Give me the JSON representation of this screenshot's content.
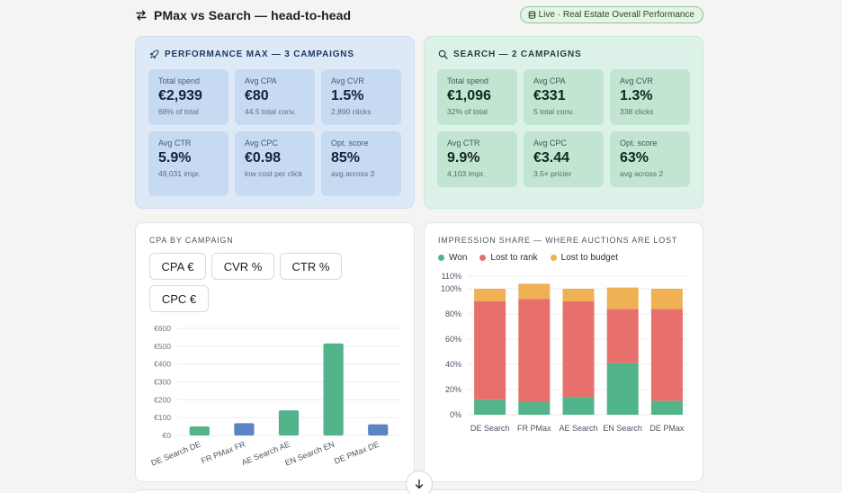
{
  "header": {
    "title": "PMax vs Search — head-to-head",
    "badge": "Live · Real Estate Overall Performance"
  },
  "pmax": {
    "heading": "PERFORMANCE MAX — 3 CAMPAIGNS",
    "tiles": [
      {
        "label": "Total spend",
        "value": "€2,939",
        "sub": "68% of total"
      },
      {
        "label": "Avg CPA",
        "value": "€80",
        "sub": "44.5 total conv."
      },
      {
        "label": "Avg CVR",
        "value": "1.5%",
        "sub": "2,890 clicks"
      },
      {
        "label": "Avg CTR",
        "value": "5.9%",
        "sub": "49,031 impr."
      },
      {
        "label": "Avg CPC",
        "value": "€0.98",
        "sub": "low cost per click"
      },
      {
        "label": "Opt. score",
        "value": "85%",
        "sub": "avg across 3"
      }
    ]
  },
  "search": {
    "heading": "SEARCH — 2 CAMPAIGNS",
    "tiles": [
      {
        "label": "Total spend",
        "value": "€1,096",
        "sub": "32% of total"
      },
      {
        "label": "Avg CPA",
        "value": "€331",
        "sub": "5 total conv."
      },
      {
        "label": "Avg CVR",
        "value": "1.3%",
        "sub": "338 clicks"
      },
      {
        "label": "Avg CTR",
        "value": "9.9%",
        "sub": "4,103 impr."
      },
      {
        "label": "Avg CPC",
        "value": "€3.44",
        "sub": "3.5× pricier"
      },
      {
        "label": "Opt. score",
        "value": "63%",
        "sub": "avg across 2"
      }
    ]
  },
  "cpa_card": {
    "title": "CPA BY CAMPAIGN",
    "buttons": [
      "CPA €",
      "CVR %",
      "CTR %",
      "CPC €"
    ]
  },
  "imp_card": {
    "title": "IMPRESSION SHARE — WHERE AUCTIONS ARE LOST"
  },
  "colors": {
    "search_bar": "#52b48a",
    "pmax_bar": "#5b84c4",
    "won": "#52b48a",
    "lost_rank": "#e8706c",
    "lost_budget": "#f0b155"
  },
  "chart_data": [
    {
      "type": "bar",
      "title": "CPA BY CAMPAIGN",
      "categories": [
        "DE Search DE",
        "FR PMax FR",
        "AE Search AE",
        "EN Search EN",
        "DE PMax DE"
      ],
      "values": [
        50,
        68,
        140,
        515,
        62
      ],
      "channel": [
        "search",
        "pmax",
        "search",
        "search",
        "pmax"
      ],
      "y_ticks": [
        "€0",
        "€100",
        "€200",
        "€300",
        "€400",
        "€500",
        "€600"
      ],
      "ylim": [
        0,
        600
      ],
      "grid": true
    },
    {
      "type": "bar",
      "stacked": true,
      "title": "IMPRESSION SHARE — WHERE AUCTIONS ARE LOST",
      "categories": [
        "DE Search",
        "FR PMax",
        "AE Search",
        "EN Search",
        "DE PMax"
      ],
      "series": [
        {
          "name": "Won",
          "values": [
            12,
            10,
            14,
            41,
            11
          ]
        },
        {
          "name": "Lost to rank",
          "values": [
            78,
            82,
            76,
            43,
            73
          ]
        },
        {
          "name": "Lost to budget",
          "values": [
            10,
            12,
            10,
            17,
            16
          ]
        }
      ],
      "y_ticks": [
        "0%",
        "20%",
        "40%",
        "60%",
        "80%",
        "100%",
        "110%"
      ],
      "ylim": [
        0,
        110
      ],
      "legend": "top-left",
      "grid": true
    }
  ]
}
